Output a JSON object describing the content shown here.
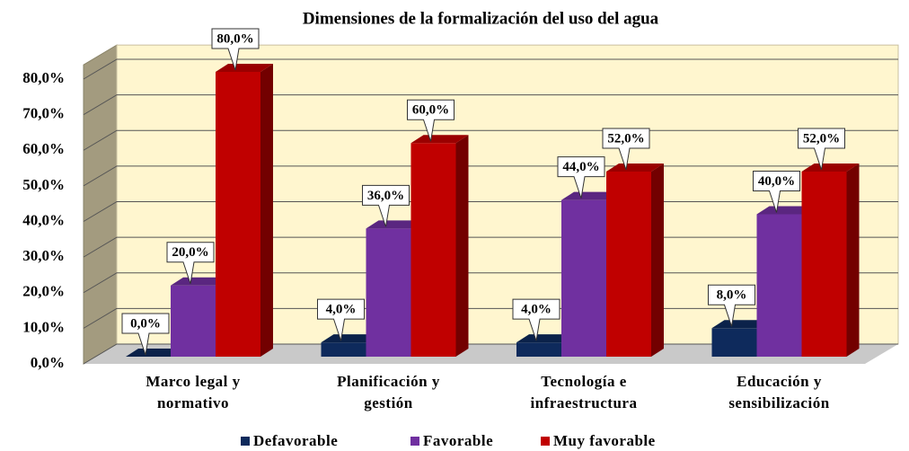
{
  "chart_data": {
    "type": "bar3d",
    "title": "Dimensiones de la formalización del uso del agua",
    "categories": [
      "Marco legal y normativo",
      "Planificación y gestión",
      "Tecnología e infraestructura",
      "Educación y sensibilización"
    ],
    "series": [
      {
        "name": "Defavorable",
        "color": "#0e2a5c",
        "values": [
          0,
          4,
          4,
          8
        ],
        "value_labels": [
          "0,0%",
          "4,0%",
          "4,0%",
          "8,0%"
        ]
      },
      {
        "name": "Favorable",
        "color": "#7030a0",
        "values": [
          20,
          36,
          44,
          40
        ],
        "value_labels": [
          "20,0%",
          "36,0%",
          "44,0%",
          "40,0%"
        ]
      },
      {
        "name": "Muy favorable",
        "color": "#c00000",
        "values": [
          80,
          60,
          52,
          52
        ],
        "value_labels": [
          "80,0%",
          "60,0%",
          "52,0%",
          "52,0%"
        ]
      }
    ],
    "ylim": [
      0,
      84
    ],
    "yticks": [
      {
        "value": 0,
        "label": "0,0%"
      },
      {
        "value": 10,
        "label": "10,0%"
      },
      {
        "value": 20,
        "label": "20,0%"
      },
      {
        "value": 30,
        "label": "30,0%"
      },
      {
        "value": 40,
        "label": "40,0%"
      },
      {
        "value": 50,
        "label": "50,0%"
      },
      {
        "value": 60,
        "label": "60,0%"
      },
      {
        "value": 70,
        "label": "70,0%"
      },
      {
        "value": 80,
        "label": "80,0%"
      }
    ],
    "grid": true,
    "legend": "bottom"
  }
}
